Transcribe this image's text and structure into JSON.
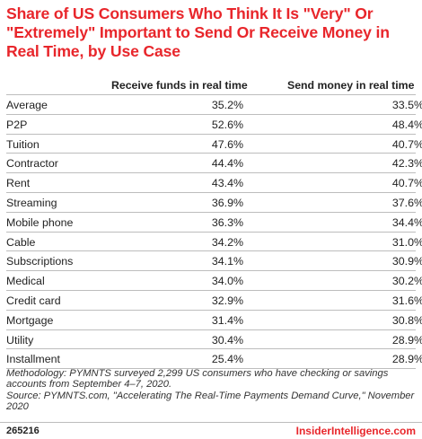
{
  "chart_data": {
    "type": "table",
    "title": "Share of US Consumers Who Think It Is \"Very\" Or \"Extremely\" Important to Send Or Receive Money in Real Time, by Use Case",
    "columns": [
      "Receive funds in real time",
      "Send money in real time"
    ],
    "rows": [
      {
        "label": "Average",
        "values": [
          "35.2%",
          "33.5%"
        ]
      },
      {
        "label": "P2P",
        "values": [
          "52.6%",
          "48.4%"
        ]
      },
      {
        "label": "Tuition",
        "values": [
          "47.6%",
          "40.7%"
        ]
      },
      {
        "label": "Contractor",
        "values": [
          "44.4%",
          "42.3%"
        ]
      },
      {
        "label": "Rent",
        "values": [
          "43.4%",
          "40.7%"
        ]
      },
      {
        "label": "Streaming",
        "values": [
          "36.9%",
          "37.6%"
        ]
      },
      {
        "label": "Mobile phone",
        "values": [
          "36.3%",
          "34.4%"
        ]
      },
      {
        "label": "Cable",
        "values": [
          "34.2%",
          "31.0%"
        ]
      },
      {
        "label": "Subscriptions",
        "values": [
          "34.1%",
          "30.9%"
        ]
      },
      {
        "label": "Medical",
        "values": [
          "34.0%",
          "30.2%"
        ]
      },
      {
        "label": "Credit card",
        "values": [
          "32.9%",
          "31.6%"
        ]
      },
      {
        "label": "Mortgage",
        "values": [
          "31.4%",
          "30.8%"
        ]
      },
      {
        "label": "Utility",
        "values": [
          "30.4%",
          "28.9%"
        ]
      },
      {
        "label": "Installment",
        "values": [
          "25.4%",
          "28.9%"
        ]
      }
    ]
  },
  "notes": {
    "methodology": "Methodology: PYMNTS surveyed 2,299 US consumers who have checking or savings accounts from September 4–7, 2020.",
    "source": "Source: PYMNTS.com, \"Accelerating The Real-Time Payments Demand Curve,\" November 2020"
  },
  "footer": {
    "chart_id": "265216",
    "brand": "InsiderIntelligence.com"
  },
  "colors": {
    "accent": "#e8262b",
    "rule": "#bdbdbd"
  }
}
